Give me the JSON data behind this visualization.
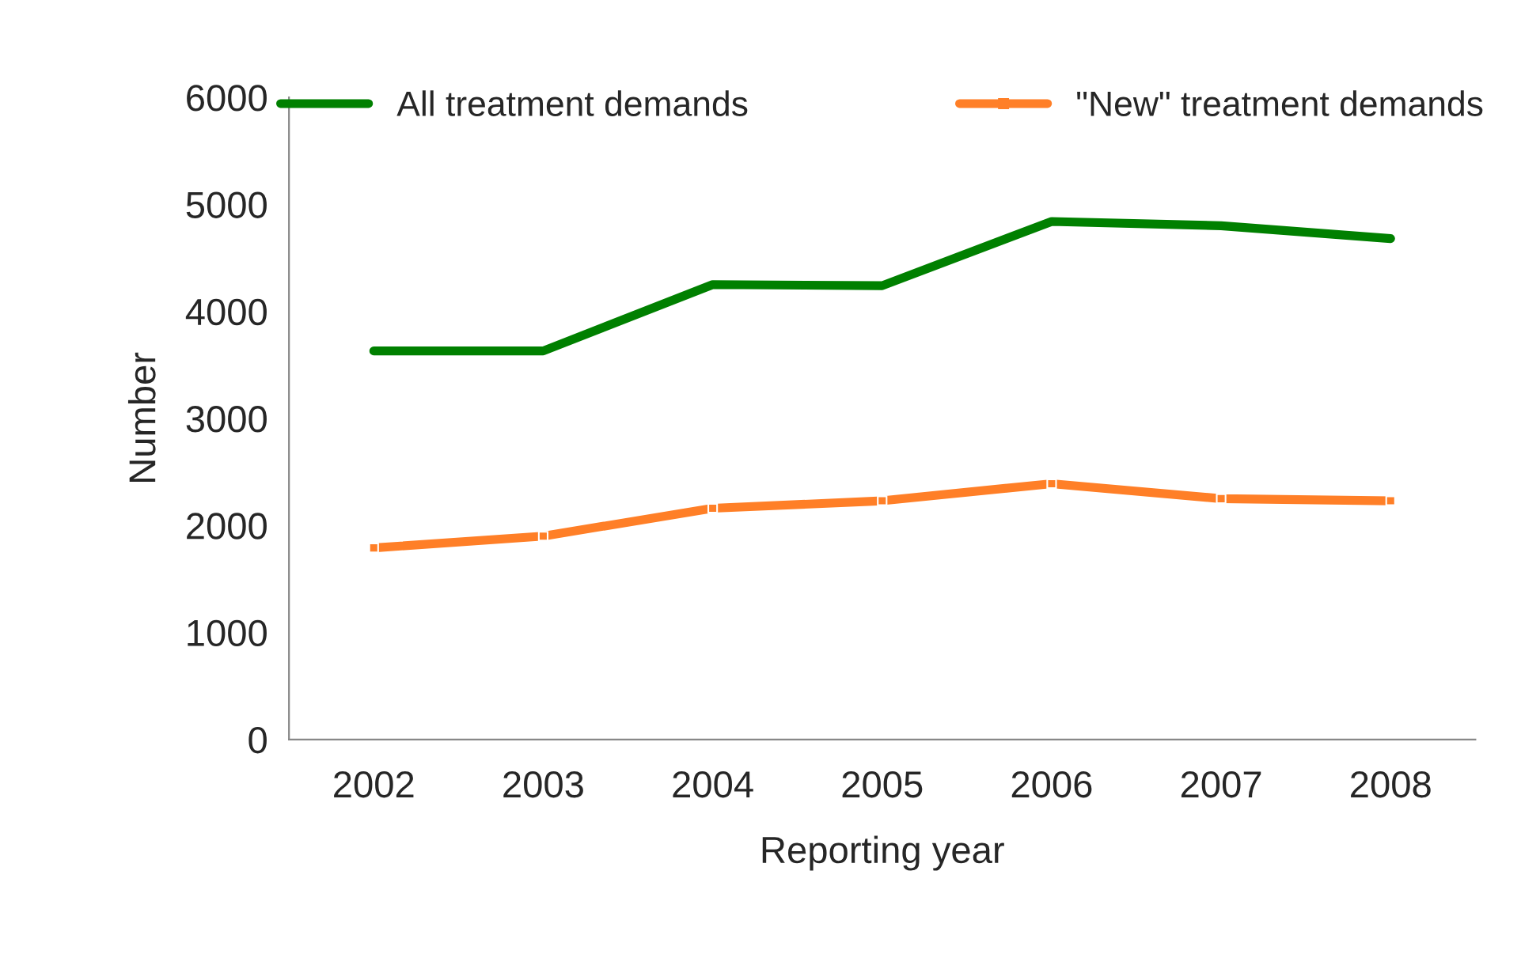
{
  "chart_data": {
    "type": "line",
    "xlabel": "Reporting year",
    "ylabel": "Number",
    "categories": [
      "2002",
      "2003",
      "2004",
      "2005",
      "2006",
      "2007",
      "2008"
    ],
    "series": [
      {
        "name": "All treatment demands",
        "color": "#008000",
        "values": [
          3630,
          3630,
          4250,
          4240,
          4840,
          4800,
          4680
        ]
      },
      {
        "name": "\"New\" treatment demands",
        "color": "#ff7f27",
        "marker": "square",
        "values": [
          1790,
          1900,
          2160,
          2230,
          2390,
          2250,
          2230
        ]
      }
    ],
    "ylim": [
      0,
      6000
    ],
    "yticks": [
      0,
      1000,
      2000,
      3000,
      4000,
      5000,
      6000
    ],
    "grid": false,
    "legend": "top"
  }
}
